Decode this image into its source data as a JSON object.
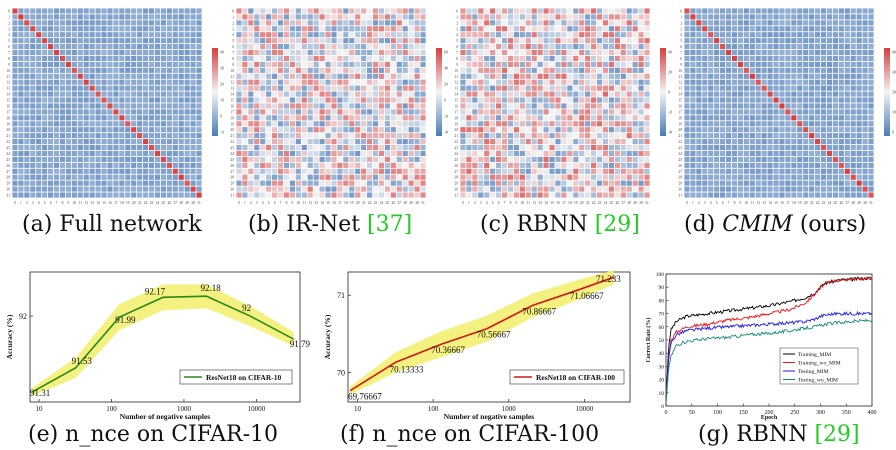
{
  "heatmaps": [
    {
      "id": "a",
      "caption_prefix": "(a) ",
      "caption_text": "Full network",
      "ref": "",
      "kind": "diag",
      "colorbar_ticks": [
        "400",
        "300",
        "200",
        "100",
        "0",
        "-100"
      ]
    },
    {
      "id": "b",
      "caption_prefix": "(b) ",
      "caption_text": "IR-Net ",
      "ref": "[37]",
      "kind": "noisy",
      "colorbar_ticks": [
        "60",
        "40",
        "20",
        "0",
        "-20",
        "-40"
      ]
    },
    {
      "id": "c",
      "caption_prefix": "(c) ",
      "caption_text": "RBNN ",
      "ref": "[29]",
      "kind": "noisy2",
      "colorbar_ticks": [
        "40",
        "20",
        "0",
        "-20",
        "-40"
      ]
    },
    {
      "id": "d",
      "caption_prefix": "(d) ",
      "caption_text": "CMIM",
      "caption_suffix": " (ours)",
      "ref": "",
      "kind": "diag2",
      "colorbar_ticks": [
        "400",
        "300",
        "200",
        "100",
        "0"
      ]
    }
  ],
  "heatmap_axis_labels": [
    "0",
    "1",
    "2",
    "3",
    "4",
    "5",
    "6",
    "7",
    "8",
    "9",
    "10",
    "11",
    "12",
    "13",
    "14",
    "15",
    "16",
    "17",
    "18",
    "19",
    "20",
    "21",
    "22",
    "23",
    "24",
    "25",
    "26",
    "27",
    "28",
    "29",
    "30",
    "31"
  ],
  "colors": {
    "cold": "#4a7ab8",
    "neutral": "#f4f4f4",
    "hot": "#d63c3c",
    "band": "#f3ee6a",
    "green_line": "#2a8a1a",
    "red_line": "#d01818"
  },
  "charts": {
    "e": {
      "caption": "(e) n_nce on CIFAR-10",
      "xlabel": "Number of negative samples",
      "ylabel": "Accuracy (%)",
      "legend": "ResNet18 on CIFAR-10",
      "xticks": [
        "10",
        "100",
        "1000",
        "10000"
      ],
      "yticks": [
        "92"
      ],
      "chart_data": {
        "type": "line",
        "xscale": "log",
        "x": [
          8,
          32,
          128,
          512,
          2048,
          8192,
          32768
        ],
        "y": [
          91.31,
          91.53,
          91.99,
          92.17,
          92.18,
          92.0,
          91.79
        ],
        "labels": [
          "91.31",
          "91.53",
          "91.99",
          "92.17",
          "92.18",
          "92",
          "91.79"
        ],
        "xlabel": "Number of negative samples",
        "ylabel": "Accuracy (%)",
        "ylim": [
          91.22,
          92.4
        ],
        "xlim": [
          7.5,
          40000
        ]
      }
    },
    "f": {
      "caption": "(f) n_nce on CIFAR-100",
      "xlabel": "Number of negative samples",
      "ylabel": "Accuracy (%)",
      "legend": "ResNet18 on CIFAR-100",
      "xticks": [
        "10",
        "100",
        "1000",
        "10000"
      ],
      "yticks": [
        "71",
        "70"
      ],
      "chart_data": {
        "type": "line",
        "xscale": "log",
        "x": [
          8,
          32,
          128,
          512,
          2048,
          8192,
          24576
        ],
        "y": [
          69.76667,
          70.13333,
          70.36667,
          70.56667,
          70.86667,
          71.06667,
          71.233
        ],
        "labels": [
          "69.76667",
          "70.13333",
          "70.36667",
          "70.56667",
          "70.86667",
          "71.06667",
          "71.233"
        ],
        "xlabel": "Number of negative samples",
        "ylabel": "Accuracy (%)",
        "ylim": [
          69.62,
          71.3
        ],
        "xlim": [
          7.5,
          40000
        ]
      }
    },
    "g": {
      "caption": "(g) RBNN ",
      "ref": "[29]",
      "xlabel": "Epoch",
      "ylabel": "Correct Rate (%)",
      "xticks": [
        "0",
        "50",
        "100",
        "150",
        "200",
        "250",
        "300",
        "350",
        "400"
      ],
      "yticks": [
        "0",
        "10",
        "20",
        "30",
        "40",
        "50",
        "60",
        "70",
        "80",
        "90",
        "100"
      ],
      "chart_data": {
        "type": "line",
        "xlim": [
          0,
          400
        ],
        "ylim": [
          0,
          100
        ],
        "xlabel": "Epoch",
        "ylabel": "Correct Rate (%)",
        "series": [
          {
            "name": "Training_MIM",
            "color": "#000000",
            "x": [
              0,
              5,
              10,
              20,
              40,
              80,
              120,
              160,
              200,
              240,
              270,
              290,
              300,
              310,
              330,
              360,
              400
            ],
            "y": [
              3,
              45,
              58,
              64,
              68,
              70,
              72,
              74,
              76,
              79,
              82,
              86,
              90,
              93,
              95,
              96,
              97
            ]
          },
          {
            "name": "Training_wo_MIM",
            "color": "#ee1010",
            "x": [
              0,
              5,
              10,
              20,
              40,
              80,
              120,
              160,
              200,
              240,
              270,
              290,
              300,
              310,
              330,
              360,
              400
            ],
            "y": [
              3,
              38,
              50,
              56,
              60,
              62,
              65,
              67,
              70,
              73,
              78,
              85,
              90,
              93,
              95,
              96,
              97
            ]
          },
          {
            "name": "Testing_MIM",
            "color": "#1a1aee",
            "x": [
              0,
              5,
              10,
              20,
              40,
              80,
              120,
              160,
              200,
              240,
              270,
              290,
              300,
              310,
              330,
              360,
              400
            ],
            "y": [
              2,
              35,
              48,
              54,
              57,
              59,
              60,
              61,
              62,
              63,
              64,
              66,
              68,
              69,
              70,
              70,
              70
            ]
          },
          {
            "name": "Testing_wo_MIM",
            "color": "#138a7a",
            "x": [
              0,
              5,
              10,
              20,
              40,
              80,
              120,
              160,
              200,
              240,
              270,
              290,
              300,
              310,
              330,
              360,
              400
            ],
            "y": [
              2,
              28,
              38,
              46,
              49,
              51,
              52,
              54,
              55,
              57,
              59,
              60,
              61,
              62,
              63,
              64,
              65
            ]
          }
        ]
      }
    }
  }
}
